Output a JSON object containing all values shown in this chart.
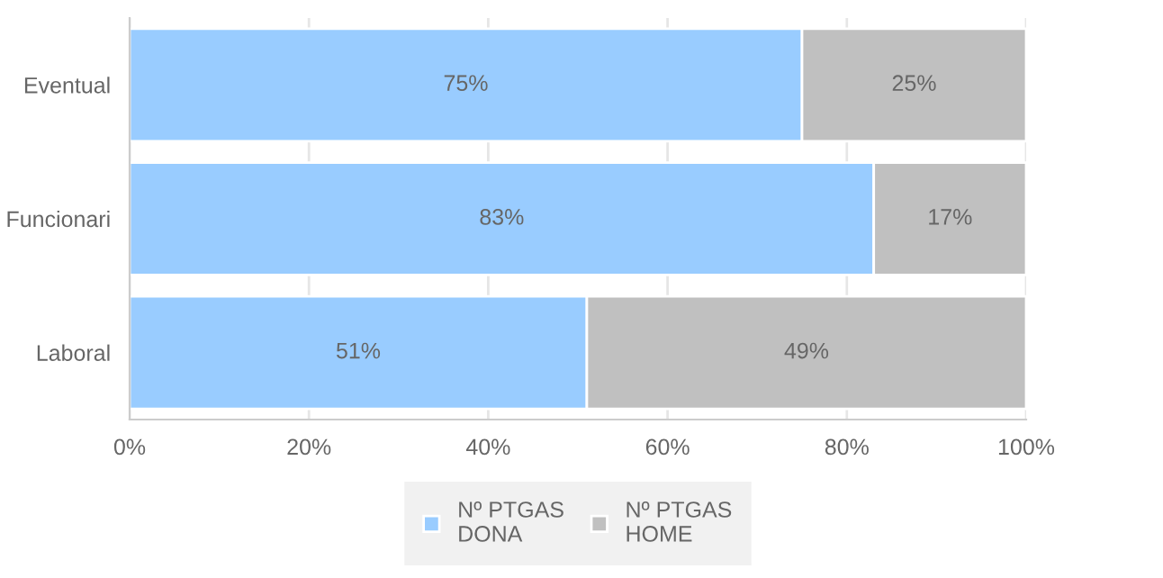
{
  "chart_data": {
    "type": "bar",
    "orientation": "horizontal",
    "stacked": true,
    "categories": [
      "Eventual",
      "Funcionari",
      "Laboral"
    ],
    "series": [
      {
        "name": "Nº PTGAS DONA",
        "color": "#99ccff",
        "values": [
          75,
          83,
          51
        ],
        "value_labels": [
          "75%",
          "83%",
          "51%"
        ]
      },
      {
        "name": "Nº PTGAS HOME",
        "color": "#c0c0c0",
        "values": [
          25,
          17,
          49
        ],
        "value_labels": [
          "25%",
          "17%",
          "49%"
        ]
      }
    ],
    "xlim": [
      0,
      100
    ],
    "xticks": [
      {
        "value": 0,
        "label": "0%"
      },
      {
        "value": 20,
        "label": "20%"
      },
      {
        "value": 40,
        "label": "40%"
      },
      {
        "value": 60,
        "label": "60%"
      },
      {
        "value": 80,
        "label": "80%"
      },
      {
        "value": 100,
        "label": "100%"
      }
    ],
    "grid": "x",
    "legend": "bottom"
  }
}
